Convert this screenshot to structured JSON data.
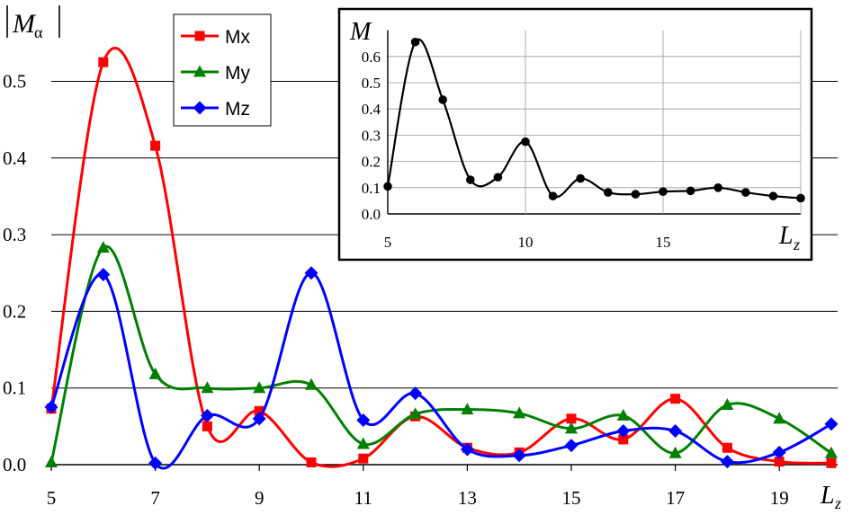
{
  "chart_data": [
    {
      "type": "line",
      "ylabel_main": "M",
      "ylabel_sub": "α",
      "xlabel_main": "L",
      "xlabel_sub": "z",
      "xlim": [
        5,
        20
      ],
      "ylim": [
        0,
        0.55
      ],
      "xticks": [
        "5",
        "7",
        "9",
        "11",
        "13",
        "15",
        "17",
        "19"
      ],
      "yticks": [
        "0.0",
        "0.1",
        "0.2",
        "0.3",
        "0.4",
        "0.5"
      ],
      "grid": "horizontal",
      "legend_position": "top-left",
      "x": [
        5,
        6,
        7,
        8,
        9,
        10,
        11,
        12,
        13,
        14,
        15,
        16,
        17,
        18,
        19,
        20
      ],
      "series": [
        {
          "name": "Mx",
          "color": "#ff0000",
          "marker": "square",
          "values": [
            0.073,
            0.525,
            0.416,
            0.05,
            0.07,
            0.003,
            0.008,
            0.063,
            0.022,
            0.016,
            0.06,
            0.033,
            0.086,
            0.022,
            0.004,
            0.002
          ]
        },
        {
          "name": "My",
          "color": "#008000",
          "marker": "triangle",
          "values": [
            0.003,
            0.283,
            0.118,
            0.1,
            0.1,
            0.104,
            0.027,
            0.066,
            0.072,
            0.067,
            0.047,
            0.064,
            0.015,
            0.078,
            0.06,
            0.015
          ]
        },
        {
          "name": "Mz",
          "color": "#0000ff",
          "marker": "diamond",
          "values": [
            0.075,
            0.248,
            0.002,
            0.064,
            0.06,
            0.25,
            0.058,
            0.093,
            0.02,
            0.012,
            0.025,
            0.044,
            0.044,
            0.004,
            0.016,
            0.053
          ]
        }
      ]
    },
    {
      "type": "line",
      "ylabel": "M",
      "xlabel_main": "L",
      "xlabel_sub": "z",
      "xlim": [
        5,
        20
      ],
      "ylim": [
        0,
        0.7
      ],
      "xticks": [
        "5",
        "10",
        "15"
      ],
      "yticks": [
        "0.0",
        "0.1",
        "0.2",
        "0.3",
        "0.4",
        "0.5",
        "0.6"
      ],
      "grid": "horizontal and vertical",
      "x": [
        5,
        6,
        7,
        8,
        9,
        10,
        11,
        12,
        13,
        14,
        15,
        16,
        17,
        18,
        19,
        20
      ],
      "series": [
        {
          "color": "#000000",
          "marker": "circle",
          "values": [
            0.105,
            0.655,
            0.435,
            0.13,
            0.14,
            0.275,
            0.068,
            0.135,
            0.082,
            0.075,
            0.085,
            0.088,
            0.1,
            0.082,
            0.068,
            0.06
          ]
        }
      ]
    }
  ]
}
